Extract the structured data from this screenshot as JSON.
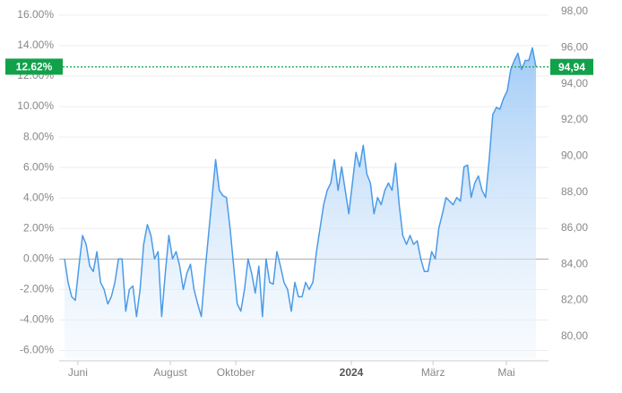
{
  "chart_data": {
    "type": "line",
    "series": [
      {
        "name": null,
        "color": "#4a9be8",
        "axis": "y2",
        "values": [
          84.3,
          83.0,
          82.2,
          82.0,
          83.9,
          85.6,
          85.1,
          83.9,
          83.6,
          84.7,
          83.0,
          82.6,
          81.8,
          82.2,
          83.0,
          84.3,
          84.3,
          81.4,
          82.6,
          82.8,
          81.1,
          82.6,
          85.1,
          86.2,
          85.6,
          84.3,
          84.7,
          81.1,
          83.5,
          85.6,
          84.3,
          84.7,
          83.9,
          82.6,
          83.5,
          84.0,
          82.6,
          81.8,
          81.1,
          83.5,
          85.6,
          87.7,
          89.8,
          88.1,
          87.8,
          87.7,
          86.0,
          83.9,
          81.8,
          81.4,
          82.6,
          84.3,
          83.5,
          82.4,
          83.9,
          81.1,
          84.3,
          83.0,
          82.9,
          84.7,
          83.9,
          83.0,
          82.6,
          81.4,
          83.0,
          82.2,
          82.2,
          83.0,
          82.6,
          83.0,
          84.7,
          86.0,
          87.3,
          88.1,
          88.5,
          89.8,
          88.1,
          89.4,
          88.1,
          86.8,
          88.5,
          90.2,
          89.4,
          90.6,
          89.0,
          88.5,
          86.8,
          87.7,
          87.3,
          88.1,
          88.5,
          88.1,
          89.6,
          87.3,
          85.6,
          85.1,
          85.6,
          85.1,
          85.3,
          84.3,
          83.6,
          83.6,
          84.7,
          84.3,
          86.0,
          86.8,
          87.7,
          87.5,
          87.3,
          87.7,
          87.5,
          89.4,
          89.5,
          87.7,
          88.5,
          88.9,
          88.1,
          87.7,
          89.8,
          92.3,
          92.7,
          92.6,
          93.2,
          93.6,
          94.8,
          95.3,
          95.7,
          94.8,
          95.3,
          95.3,
          96.0,
          94.94
        ]
      }
    ],
    "xlim": [
      0,
      131
    ],
    "xticks": [
      {
        "value": 3.7,
        "label": "Juni"
      },
      {
        "value": 29.4,
        "label": "August"
      },
      {
        "value": 47.6,
        "label": "Oktober"
      },
      {
        "value": 79.7,
        "label": "2024"
      },
      {
        "value": 102.4,
        "label": "März"
      },
      {
        "value": 122.8,
        "label": "Mai"
      }
    ],
    "ylim": [
      -6.5,
      16.7
    ],
    "yticks": [
      {
        "value": -6,
        "label": "-6.00%"
      },
      {
        "value": -4,
        "label": "-4.00%"
      },
      {
        "value": -2,
        "label": "-2.00%"
      },
      {
        "value": 0,
        "label": "0.00%"
      },
      {
        "value": 2,
        "label": "2.00%"
      },
      {
        "value": 4,
        "label": "4.00%"
      },
      {
        "value": 6,
        "label": "6.00%"
      },
      {
        "value": 8,
        "label": "8.00%"
      },
      {
        "value": 10,
        "label": "10.00%"
      },
      {
        "value": 12,
        "label": "12.00%"
      },
      {
        "value": 14,
        "label": "14.00%"
      },
      {
        "value": 16,
        "label": "16.00%"
      }
    ],
    "y2lim": [
      78.8,
      98.4
    ],
    "y2ticks": [
      {
        "value": 80,
        "label": "80,00"
      },
      {
        "value": 82,
        "label": "82,00"
      },
      {
        "value": 84,
        "label": "84,00"
      },
      {
        "value": 86,
        "label": "86,00"
      },
      {
        "value": 88,
        "label": "88,00"
      },
      {
        "value": 90,
        "label": "90,00"
      },
      {
        "value": 92,
        "label": "92,00"
      },
      {
        "value": 94,
        "label": "94,00"
      },
      {
        "value": 96,
        "label": "96,00"
      },
      {
        "value": 98,
        "label": "98,00"
      }
    ],
    "annotations": [
      {
        "value": 12.62,
        "label": "12.62%"
      },
      {
        "value": 94.94,
        "label": "94,94"
      }
    ],
    "grid": true
  }
}
